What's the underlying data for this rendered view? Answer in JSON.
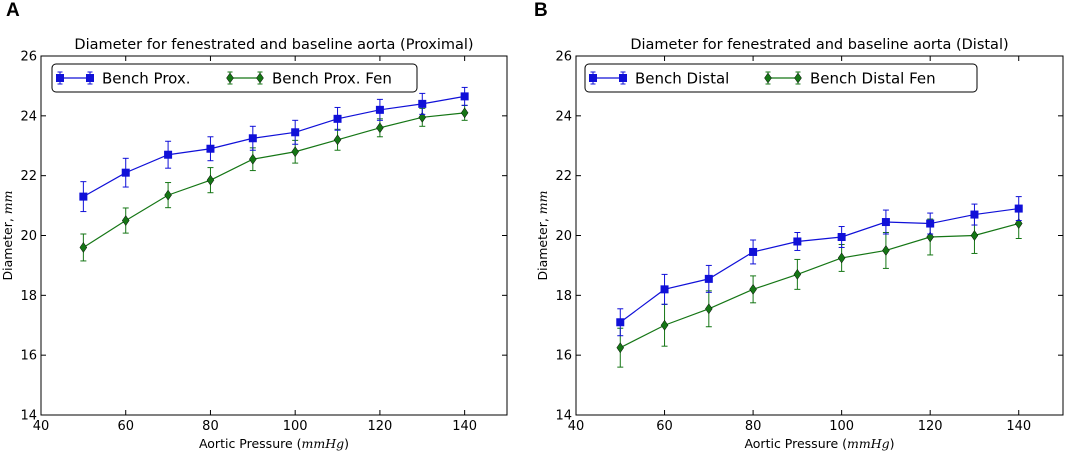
{
  "colors": {
    "series1": "#1010d8",
    "series2": "#157615"
  },
  "chart_data": [
    {
      "panel_label": "A",
      "type": "line",
      "title": "Diameter for fenestrated and baseline aorta (Proximal)",
      "xlabel": "Aortic Pressure (",
      "xlabel_unit": "mmHg",
      "xlabel_close": ")",
      "ylabel": "Diameter,",
      "ylabel_unit": "mm",
      "xlim": [
        40,
        150
      ],
      "ylim": [
        14,
        26
      ],
      "xticks": [
        40,
        60,
        80,
        100,
        120,
        140
      ],
      "yticks": [
        14,
        16,
        18,
        20,
        22,
        24,
        26
      ],
      "x": [
        50,
        60,
        70,
        80,
        90,
        100,
        110,
        120,
        130,
        140
      ],
      "series": [
        {
          "name": "Bench Prox.",
          "marker": "square",
          "values": [
            21.3,
            22.1,
            22.7,
            22.9,
            23.25,
            23.45,
            23.9,
            24.2,
            24.4,
            24.65
          ],
          "errors": [
            0.5,
            0.48,
            0.45,
            0.4,
            0.4,
            0.4,
            0.38,
            0.35,
            0.35,
            0.3
          ]
        },
        {
          "name": "Bench Prox. Fen",
          "marker": "diamond",
          "values": [
            19.6,
            20.5,
            21.35,
            21.85,
            22.55,
            22.8,
            23.2,
            23.6,
            23.95,
            24.1
          ],
          "errors": [
            0.45,
            0.42,
            0.42,
            0.42,
            0.38,
            0.38,
            0.35,
            0.3,
            0.3,
            0.25
          ]
        }
      ]
    },
    {
      "panel_label": "B",
      "type": "line",
      "title": "Diameter for fenestrated and baseline aorta (Distal)",
      "xlabel": "Aortic Pressure (",
      "xlabel_unit": "mmHg",
      "xlabel_close": ")",
      "ylabel": "Diameter,",
      "ylabel_unit": "mm",
      "xlim": [
        40,
        150
      ],
      "ylim": [
        14,
        26
      ],
      "xticks": [
        40,
        60,
        80,
        100,
        120,
        140
      ],
      "yticks": [
        14,
        16,
        18,
        20,
        22,
        24,
        26
      ],
      "x": [
        50,
        60,
        70,
        80,
        90,
        100,
        110,
        120,
        130,
        140
      ],
      "series": [
        {
          "name": "Bench Distal",
          "marker": "square",
          "values": [
            17.1,
            18.2,
            18.55,
            19.45,
            19.8,
            19.95,
            20.45,
            20.4,
            20.7,
            20.9
          ],
          "errors": [
            0.45,
            0.5,
            0.45,
            0.4,
            0.3,
            0.35,
            0.4,
            0.35,
            0.35,
            0.4
          ]
        },
        {
          "name": "Bench Distal Fen",
          "marker": "diamond",
          "values": [
            16.25,
            17.0,
            17.55,
            18.2,
            18.7,
            19.25,
            19.5,
            19.95,
            20.0,
            20.4
          ],
          "errors": [
            0.65,
            0.7,
            0.6,
            0.45,
            0.5,
            0.45,
            0.6,
            0.6,
            0.6,
            0.5
          ]
        }
      ]
    }
  ]
}
